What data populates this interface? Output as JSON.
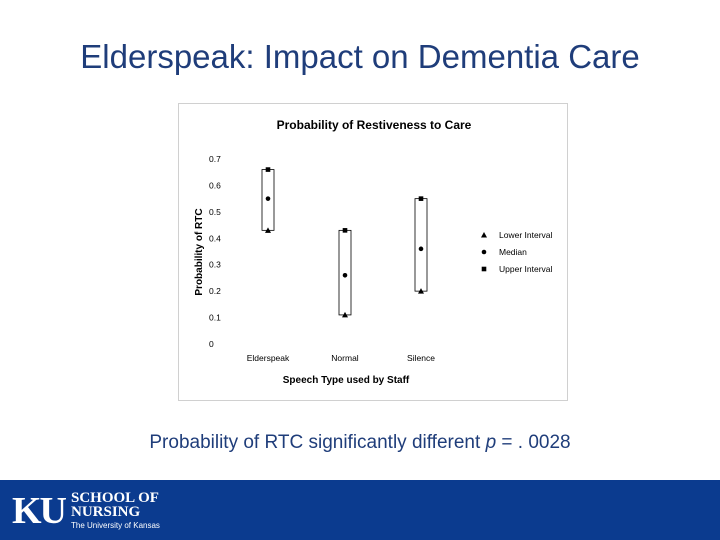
{
  "slide": {
    "title": "Elderspeak: Impact on Dementia Care",
    "caption_before": "Probability of RTC significantly different ",
    "caption_p": "p",
    "caption_after": " = . 0028"
  },
  "logo": {
    "ku": "KU",
    "line1": "SCHOOL OF",
    "line2": "NURSING",
    "line3": "The University of Kansas"
  },
  "colors": {
    "title": "#1f3d7a",
    "footer": "#0b3b8f"
  },
  "chart_data": {
    "type": "scatter",
    "title": "Probability of Restiveness to Care",
    "xlabel": "Speech Type used by Staff",
    "ylabel": "Probability of RTC",
    "categories": [
      "Elderspeak",
      "Normal",
      "Silence"
    ],
    "yticks": [
      "0",
      "0.1",
      "0.2",
      "0.3",
      "0.4",
      "0.5",
      "0.6",
      "0.7"
    ],
    "ylim": [
      0,
      0.7
    ],
    "series": [
      {
        "name": "Lower Interval",
        "marker": "triangle",
        "values": [
          0.43,
          0.11,
          0.2
        ]
      },
      {
        "name": "Median",
        "marker": "circle",
        "values": [
          0.55,
          0.26,
          0.36
        ]
      },
      {
        "name": "Upper Interval",
        "marker": "square",
        "values": [
          0.66,
          0.43,
          0.55
        ]
      }
    ],
    "legend": "right"
  }
}
